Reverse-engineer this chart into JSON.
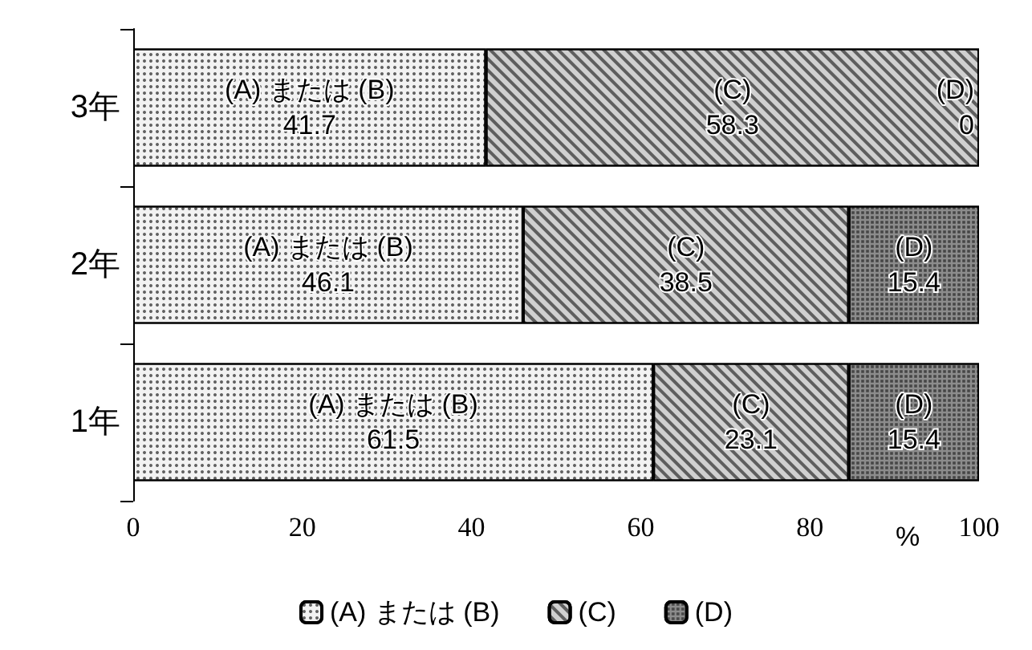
{
  "chart_data": {
    "type": "bar",
    "orientation": "horizontal",
    "stacked": true,
    "categories": [
      "3年",
      "2年",
      "1年"
    ],
    "xlabel": "%",
    "xlim": [
      0,
      100
    ],
    "xticks": [
      0,
      20,
      40,
      60,
      80,
      100
    ],
    "grid": false,
    "legend": "bottom",
    "data_labels": true,
    "series": [
      {
        "name": "(A) または (B)",
        "color": "#f2f2f2",
        "values": [
          41.7,
          46.1,
          61.5
        ]
      },
      {
        "name": "(C)",
        "color": "#d0d0d0",
        "values": [
          58.3,
          38.5,
          23.1
        ]
      },
      {
        "name": "(D)",
        "color": "#8c8c8c",
        "values": [
          0,
          15.4,
          15.4
        ]
      }
    ]
  }
}
